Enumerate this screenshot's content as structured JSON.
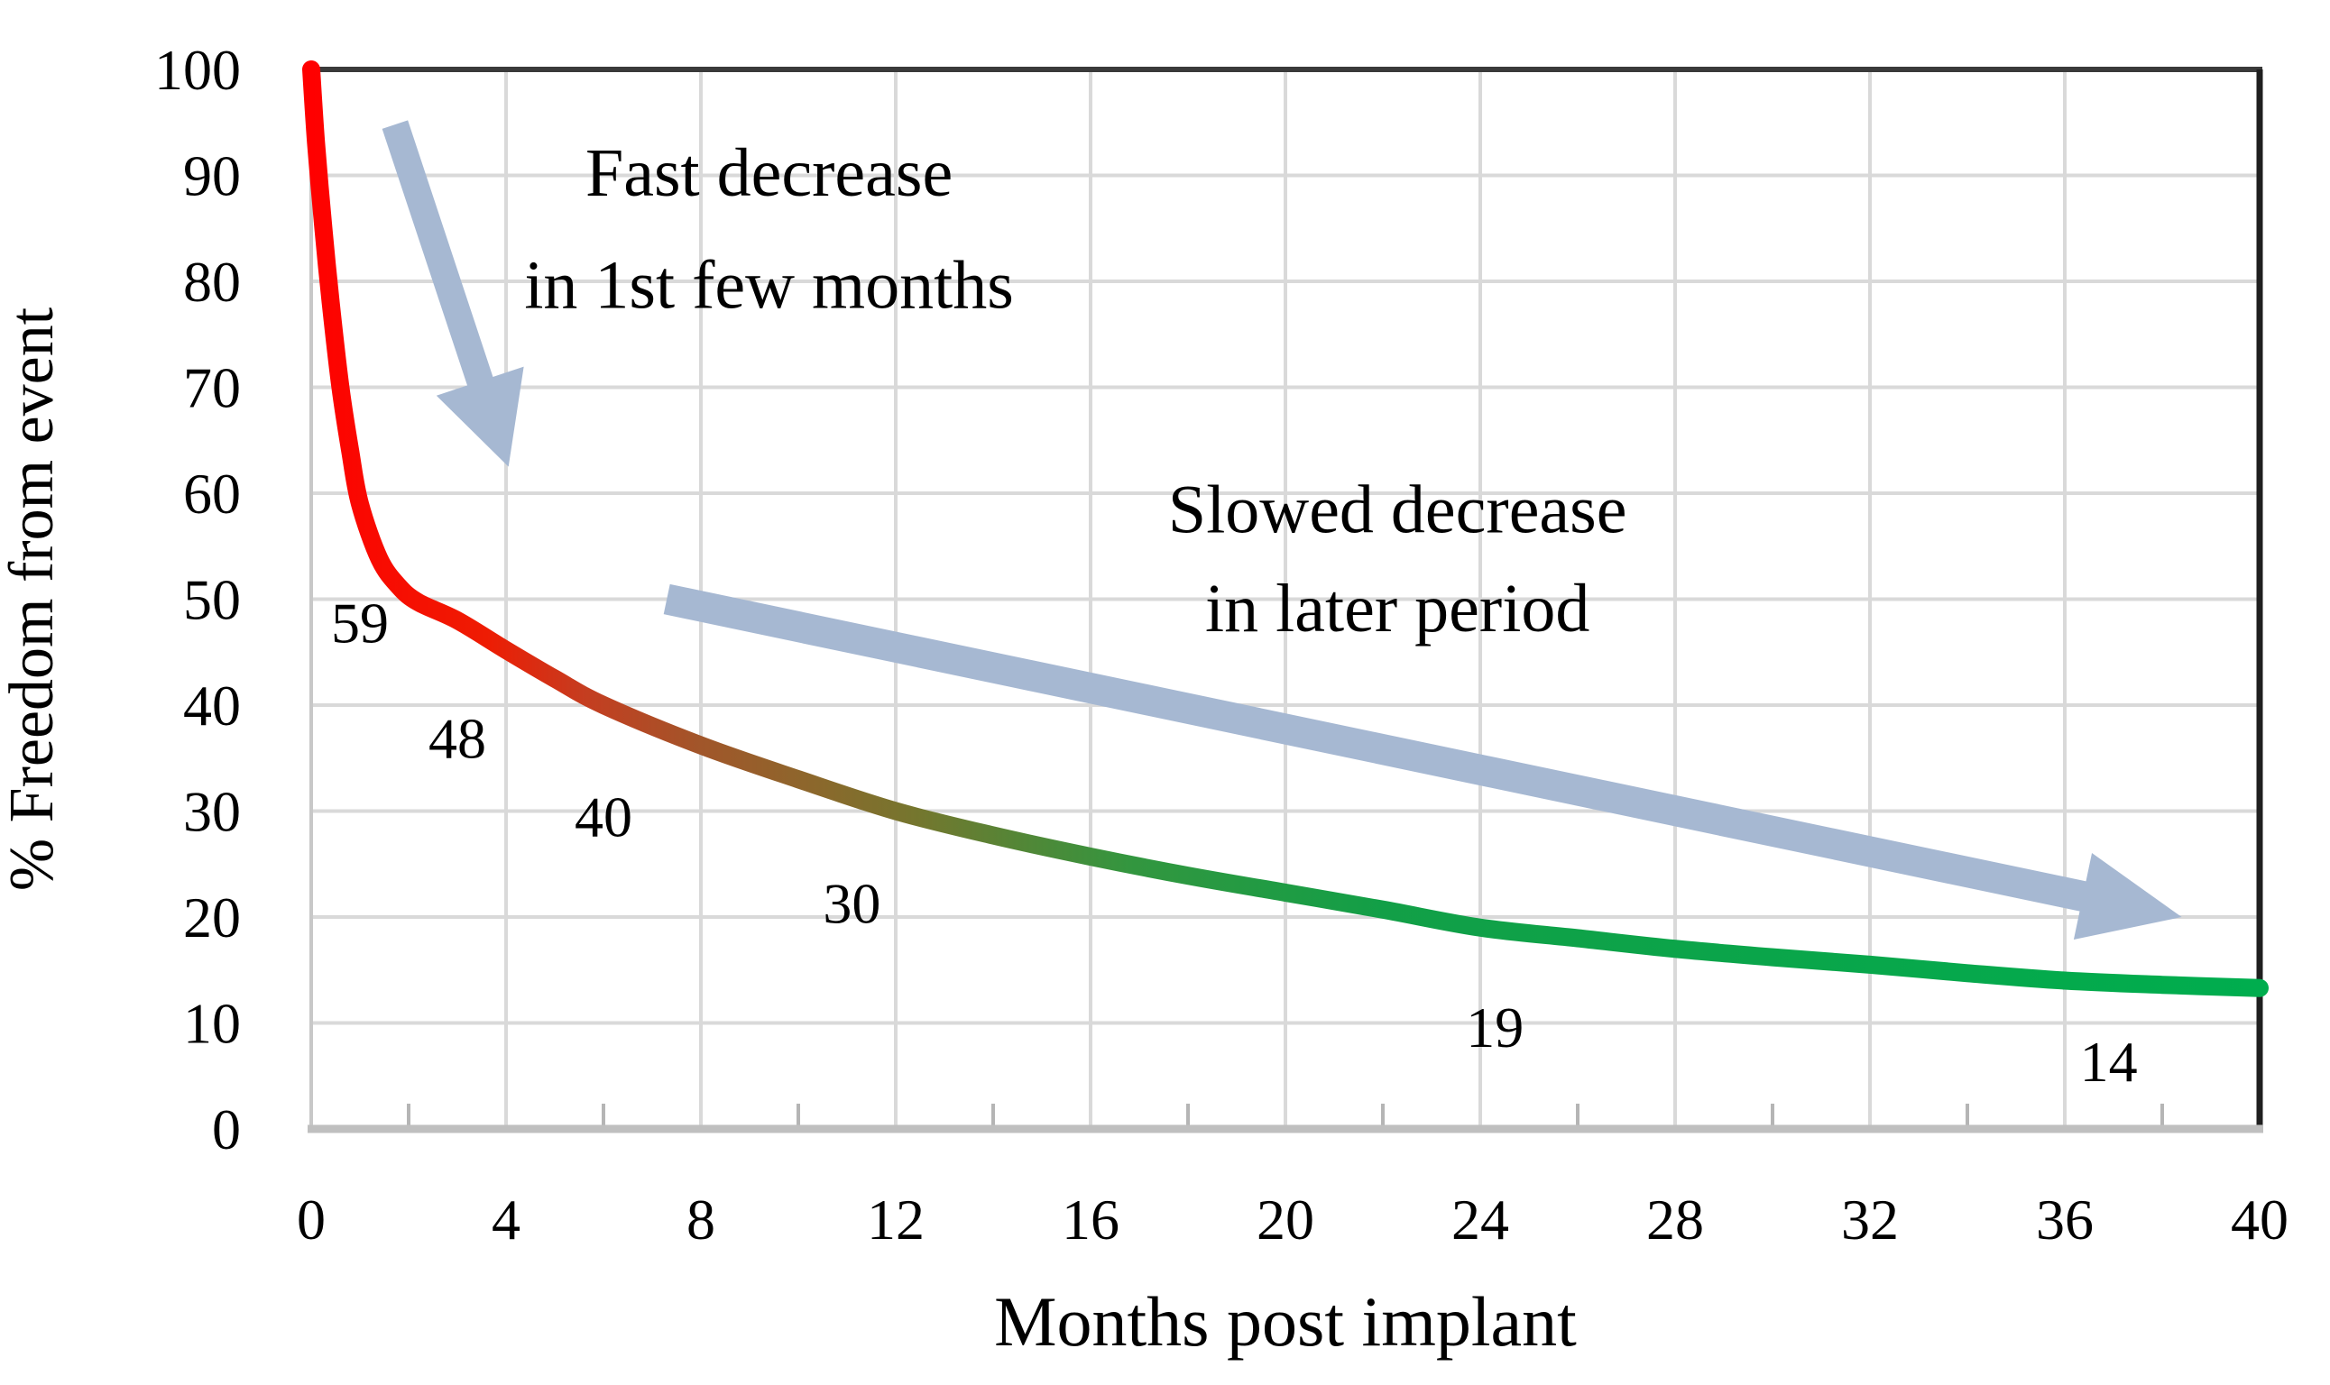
{
  "chart_data": {
    "type": "line",
    "title": "",
    "xlabel": "Months post implant",
    "ylabel": "% Freedom from event",
    "xlim": [
      0,
      40
    ],
    "ylim": [
      0,
      100
    ],
    "x_ticks": [
      "0",
      "4",
      "8",
      "12",
      "16",
      "20",
      "24",
      "28",
      "32",
      "36",
      "40"
    ],
    "x_tick_values": [
      0,
      4,
      8,
      12,
      16,
      20,
      24,
      28,
      32,
      36,
      40
    ],
    "x_minor_tick_values": [
      2,
      6,
      10,
      14,
      18,
      22,
      26,
      30,
      34,
      38
    ],
    "y_ticks": [
      "0",
      "10",
      "20",
      "30",
      "40",
      "50",
      "60",
      "70",
      "80",
      "90",
      "100"
    ],
    "y_tick_values": [
      0,
      10,
      20,
      30,
      40,
      50,
      60,
      70,
      80,
      90,
      100
    ],
    "grid": true,
    "legend": "none",
    "series": [
      {
        "name": "freedom-from-event-curve",
        "points": [
          [
            0,
            100
          ],
          [
            0.1,
            93
          ],
          [
            0.25,
            85
          ],
          [
            0.4,
            78
          ],
          [
            0.6,
            70
          ],
          [
            0.8,
            64
          ],
          [
            1,
            59
          ],
          [
            1.4,
            53.8
          ],
          [
            1.8,
            51.2
          ],
          [
            2.2,
            49.7
          ],
          [
            3,
            48
          ],
          [
            4,
            45.2
          ],
          [
            5,
            42.5
          ],
          [
            6,
            40
          ],
          [
            8,
            36.2
          ],
          [
            10,
            33
          ],
          [
            12,
            30
          ],
          [
            14,
            27.7
          ],
          [
            16,
            25.7
          ],
          [
            18,
            23.9
          ],
          [
            20,
            22.3
          ],
          [
            22,
            20.7
          ],
          [
            24,
            19
          ],
          [
            26,
            18
          ],
          [
            28,
            17
          ],
          [
            30,
            16.2
          ],
          [
            32,
            15.5
          ],
          [
            34,
            14.7
          ],
          [
            36,
            14
          ],
          [
            38,
            13.6
          ],
          [
            40,
            13.3
          ]
        ],
        "gradient_stops": [
          [
            "0",
            "#ff0000"
          ],
          [
            "0.09",
            "#ee1c03"
          ],
          [
            "0.14",
            "#c53d20"
          ],
          [
            "0.20",
            "#a1562a"
          ],
          [
            "0.26",
            "#8b682c"
          ],
          [
            "0.31",
            "#75762e"
          ],
          [
            "0.36",
            "#558536"
          ],
          [
            "0.42",
            "#33963f"
          ],
          [
            "0.55",
            "#129f47"
          ],
          [
            "1",
            "#00ad4e"
          ]
        ]
      }
    ],
    "point_labels": [
      {
        "text": "59",
        "month": 1,
        "x": 1.0,
        "y": 47.8
      },
      {
        "text": "48",
        "month": 3,
        "x": 3.0,
        "y": 36.9
      },
      {
        "text": "40",
        "month": 6,
        "x": 6.0,
        "y": 29.5
      },
      {
        "text": "30",
        "month": 12,
        "x": 11.1,
        "y": 21.3
      },
      {
        "text": "19",
        "month": 24,
        "x": 24.3,
        "y": 9.6
      },
      {
        "text": "14",
        "month": 36,
        "x": 36.9,
        "y": 6.4
      }
    ],
    "annotations": [
      {
        "lines": [
          "Fast decrease",
          "in 1st few months"
        ],
        "text_x": 9.4,
        "line1_y": 90.3,
        "line2_y": 79.7,
        "arrow": {
          "from_x": 1.72,
          "from_y": 94.8,
          "to_x": 4.05,
          "to_y": 62.5
        }
      },
      {
        "lines": [
          "Slowed decrease",
          "in later period"
        ],
        "text_x": 22.3,
        "line1_y": 58.5,
        "line2_y": 49.2,
        "arrow": {
          "from_x": 7.3,
          "from_y": 50,
          "to_x": 38.4,
          "to_y": 20
        }
      }
    ]
  },
  "colors": {
    "background": "#ffffff",
    "gridline": "#d9d9d9",
    "axis_top": "#3a3a3a",
    "axis_right": "#1f1f1f",
    "axis_left": "#c8c8c8",
    "axis_bottom": "#bfbfbf",
    "minor_tick": "#b5b5b5",
    "arrow": "#a6b8d2",
    "text": "#000000"
  }
}
